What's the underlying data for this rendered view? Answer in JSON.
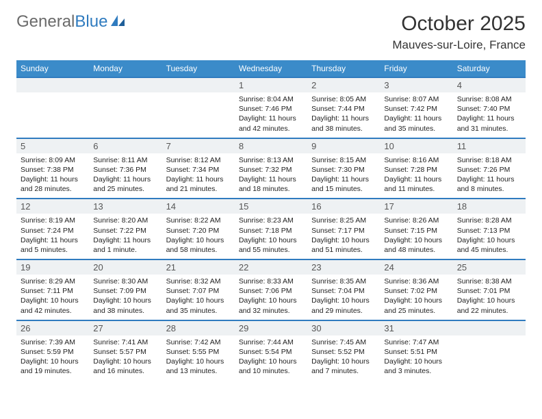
{
  "logo": {
    "text1": "General",
    "text2": "Blue"
  },
  "title": "October 2025",
  "location": "Mauves-sur-Loire, France",
  "colors": {
    "header_bg": "#3b8bc9",
    "row_border": "#2f7bbf",
    "daynum_bg": "#eef1f3",
    "logo_grey": "#6a6a6a",
    "logo_blue": "#2f7bbf"
  },
  "dow": [
    "Sunday",
    "Monday",
    "Tuesday",
    "Wednesday",
    "Thursday",
    "Friday",
    "Saturday"
  ],
  "weeks": [
    [
      {
        "n": "",
        "sr": "",
        "ss": "",
        "dl": ""
      },
      {
        "n": "",
        "sr": "",
        "ss": "",
        "dl": ""
      },
      {
        "n": "",
        "sr": "",
        "ss": "",
        "dl": ""
      },
      {
        "n": "1",
        "sr": "Sunrise: 8:04 AM",
        "ss": "Sunset: 7:46 PM",
        "dl": "Daylight: 11 hours and 42 minutes."
      },
      {
        "n": "2",
        "sr": "Sunrise: 8:05 AM",
        "ss": "Sunset: 7:44 PM",
        "dl": "Daylight: 11 hours and 38 minutes."
      },
      {
        "n": "3",
        "sr": "Sunrise: 8:07 AM",
        "ss": "Sunset: 7:42 PM",
        "dl": "Daylight: 11 hours and 35 minutes."
      },
      {
        "n": "4",
        "sr": "Sunrise: 8:08 AM",
        "ss": "Sunset: 7:40 PM",
        "dl": "Daylight: 11 hours and 31 minutes."
      }
    ],
    [
      {
        "n": "5",
        "sr": "Sunrise: 8:09 AM",
        "ss": "Sunset: 7:38 PM",
        "dl": "Daylight: 11 hours and 28 minutes."
      },
      {
        "n": "6",
        "sr": "Sunrise: 8:11 AM",
        "ss": "Sunset: 7:36 PM",
        "dl": "Daylight: 11 hours and 25 minutes."
      },
      {
        "n": "7",
        "sr": "Sunrise: 8:12 AM",
        "ss": "Sunset: 7:34 PM",
        "dl": "Daylight: 11 hours and 21 minutes."
      },
      {
        "n": "8",
        "sr": "Sunrise: 8:13 AM",
        "ss": "Sunset: 7:32 PM",
        "dl": "Daylight: 11 hours and 18 minutes."
      },
      {
        "n": "9",
        "sr": "Sunrise: 8:15 AM",
        "ss": "Sunset: 7:30 PM",
        "dl": "Daylight: 11 hours and 15 minutes."
      },
      {
        "n": "10",
        "sr": "Sunrise: 8:16 AM",
        "ss": "Sunset: 7:28 PM",
        "dl": "Daylight: 11 hours and 11 minutes."
      },
      {
        "n": "11",
        "sr": "Sunrise: 8:18 AM",
        "ss": "Sunset: 7:26 PM",
        "dl": "Daylight: 11 hours and 8 minutes."
      }
    ],
    [
      {
        "n": "12",
        "sr": "Sunrise: 8:19 AM",
        "ss": "Sunset: 7:24 PM",
        "dl": "Daylight: 11 hours and 5 minutes."
      },
      {
        "n": "13",
        "sr": "Sunrise: 8:20 AM",
        "ss": "Sunset: 7:22 PM",
        "dl": "Daylight: 11 hours and 1 minute."
      },
      {
        "n": "14",
        "sr": "Sunrise: 8:22 AM",
        "ss": "Sunset: 7:20 PM",
        "dl": "Daylight: 10 hours and 58 minutes."
      },
      {
        "n": "15",
        "sr": "Sunrise: 8:23 AM",
        "ss": "Sunset: 7:18 PM",
        "dl": "Daylight: 10 hours and 55 minutes."
      },
      {
        "n": "16",
        "sr": "Sunrise: 8:25 AM",
        "ss": "Sunset: 7:17 PM",
        "dl": "Daylight: 10 hours and 51 minutes."
      },
      {
        "n": "17",
        "sr": "Sunrise: 8:26 AM",
        "ss": "Sunset: 7:15 PM",
        "dl": "Daylight: 10 hours and 48 minutes."
      },
      {
        "n": "18",
        "sr": "Sunrise: 8:28 AM",
        "ss": "Sunset: 7:13 PM",
        "dl": "Daylight: 10 hours and 45 minutes."
      }
    ],
    [
      {
        "n": "19",
        "sr": "Sunrise: 8:29 AM",
        "ss": "Sunset: 7:11 PM",
        "dl": "Daylight: 10 hours and 42 minutes."
      },
      {
        "n": "20",
        "sr": "Sunrise: 8:30 AM",
        "ss": "Sunset: 7:09 PM",
        "dl": "Daylight: 10 hours and 38 minutes."
      },
      {
        "n": "21",
        "sr": "Sunrise: 8:32 AM",
        "ss": "Sunset: 7:07 PM",
        "dl": "Daylight: 10 hours and 35 minutes."
      },
      {
        "n": "22",
        "sr": "Sunrise: 8:33 AM",
        "ss": "Sunset: 7:06 PM",
        "dl": "Daylight: 10 hours and 32 minutes."
      },
      {
        "n": "23",
        "sr": "Sunrise: 8:35 AM",
        "ss": "Sunset: 7:04 PM",
        "dl": "Daylight: 10 hours and 29 minutes."
      },
      {
        "n": "24",
        "sr": "Sunrise: 8:36 AM",
        "ss": "Sunset: 7:02 PM",
        "dl": "Daylight: 10 hours and 25 minutes."
      },
      {
        "n": "25",
        "sr": "Sunrise: 8:38 AM",
        "ss": "Sunset: 7:01 PM",
        "dl": "Daylight: 10 hours and 22 minutes."
      }
    ],
    [
      {
        "n": "26",
        "sr": "Sunrise: 7:39 AM",
        "ss": "Sunset: 5:59 PM",
        "dl": "Daylight: 10 hours and 19 minutes."
      },
      {
        "n": "27",
        "sr": "Sunrise: 7:41 AM",
        "ss": "Sunset: 5:57 PM",
        "dl": "Daylight: 10 hours and 16 minutes."
      },
      {
        "n": "28",
        "sr": "Sunrise: 7:42 AM",
        "ss": "Sunset: 5:55 PM",
        "dl": "Daylight: 10 hours and 13 minutes."
      },
      {
        "n": "29",
        "sr": "Sunrise: 7:44 AM",
        "ss": "Sunset: 5:54 PM",
        "dl": "Daylight: 10 hours and 10 minutes."
      },
      {
        "n": "30",
        "sr": "Sunrise: 7:45 AM",
        "ss": "Sunset: 5:52 PM",
        "dl": "Daylight: 10 hours and 7 minutes."
      },
      {
        "n": "31",
        "sr": "Sunrise: 7:47 AM",
        "ss": "Sunset: 5:51 PM",
        "dl": "Daylight: 10 hours and 3 minutes."
      },
      {
        "n": "",
        "sr": "",
        "ss": "",
        "dl": ""
      }
    ]
  ]
}
